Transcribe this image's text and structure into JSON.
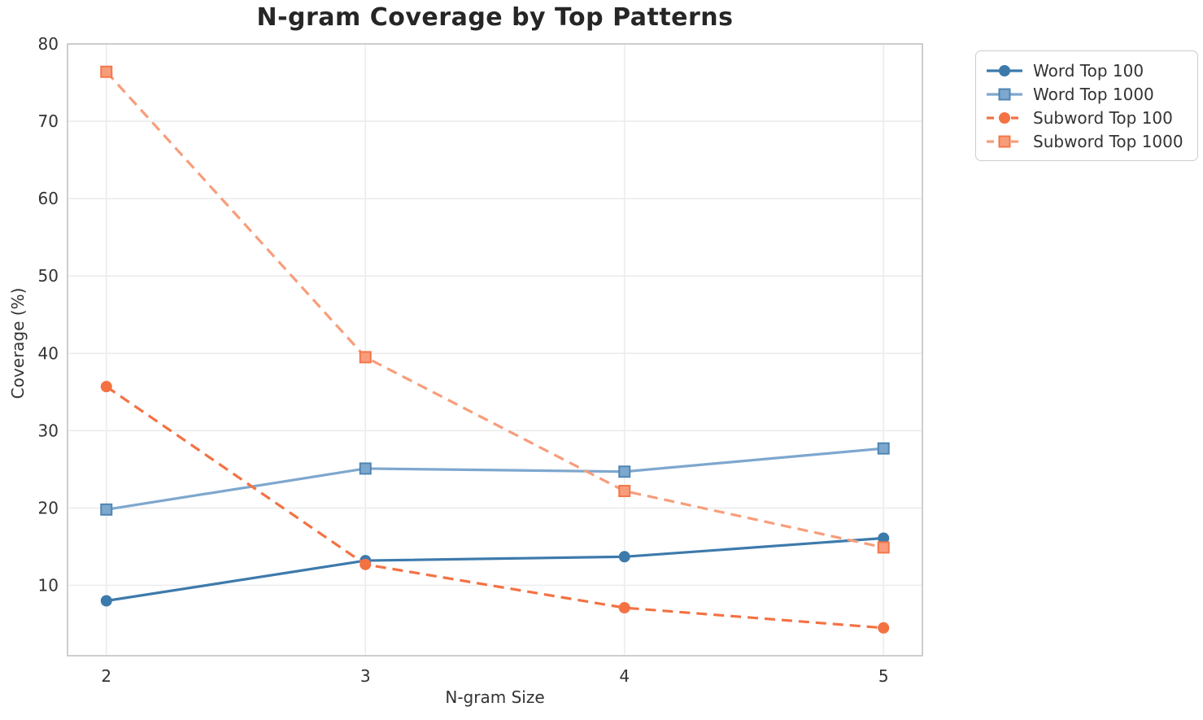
{
  "title": "N-gram Coverage by Top Patterns",
  "chart_data": {
    "type": "line",
    "title": "N-gram Coverage by Top Patterns",
    "xlabel": "N-gram Size",
    "ylabel": "Coverage (%)",
    "x": [
      2,
      3,
      4,
      5
    ],
    "series": [
      {
        "name": "Word Top 100",
        "values": [
          8.0,
          13.2,
          13.7,
          16.1
        ],
        "color": "#3d7aac",
        "marker_edge": "#3d7aac",
        "line_style": "solid",
        "marker": "circle"
      },
      {
        "name": "Word Top 1000",
        "values": [
          19.8,
          25.1,
          24.7,
          27.7
        ],
        "color": "#7ea7ce",
        "marker_edge": "#4f86b4",
        "line_style": "solid",
        "marker": "square"
      },
      {
        "name": "Subword Top 100",
        "values": [
          35.7,
          12.7,
          7.1,
          4.5
        ],
        "color": "#f47142",
        "marker_edge": "#f47142",
        "line_style": "dashed",
        "marker": "circle"
      },
      {
        "name": "Subword Top 1000",
        "values": [
          76.4,
          39.5,
          22.2,
          14.9
        ],
        "color": "#f89d7b",
        "marker_edge": "#f4764a",
        "line_style": "dashed",
        "marker": "square"
      }
    ],
    "xticks": [
      2,
      3,
      4,
      5
    ],
    "yticks": [
      10,
      20,
      30,
      40,
      50,
      60,
      70,
      80
    ],
    "xlim": [
      1.85,
      5.15
    ],
    "ylim": [
      0.9,
      80.0
    ],
    "grid": true,
    "legend_position": "upper right, outside plot"
  },
  "colors": {
    "background": "#ffffff",
    "grid": "#ececec",
    "spine": "#c9c9c9",
    "tick_text": "#333333",
    "title_text": "#262626",
    "legend_border": "#cccccc",
    "legend_text": "#333333"
  }
}
